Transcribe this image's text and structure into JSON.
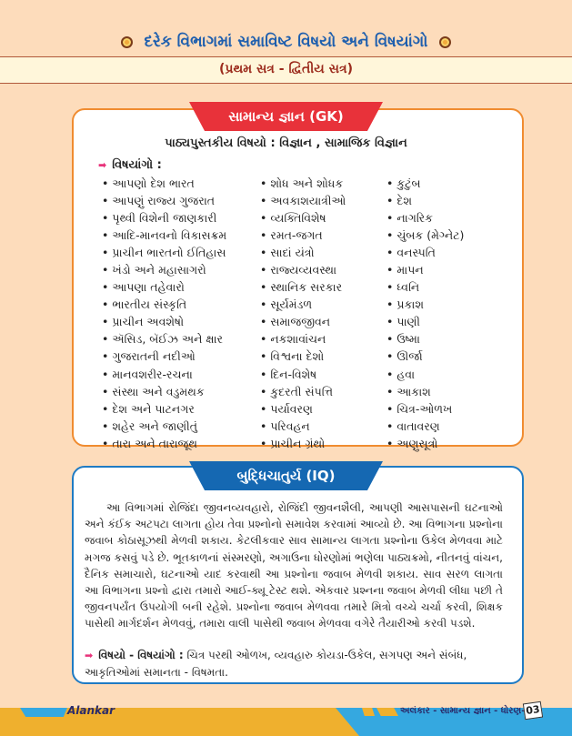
{
  "header": {
    "title": "દરેક વિભાગમાં સમાવિષ્ટ વિષયો અને વિષયાંગો",
    "subtitle": "(પ્રથમ સત્ર - દ્વિતીય સત્ર)"
  },
  "gk": {
    "tab": "સામાન્ય જ્ઞાન (GK)",
    "textbook": "પાઠ્યપુસ્તકીય વિષયો : વિજ્ઞાન , સામાજિક વિજ્ઞાન",
    "subhead": "વિષયાંગો :",
    "col1": [
      "આપણો દેશ ભારત",
      "આપણું રાજ્ય ગુજરાત",
      "પૃથ્વી વિશેની જાણકારી",
      "આદિ-માનવનો વિકાસક્રમ",
      "પ્રાચીન ભારતનો ઈતિહાસ",
      "ખંડો અને મહાસાગરો",
      "આપણા તહેવારો",
      "ભારતીય સંસ્કૃતિ",
      "પ્રાચીન અવશેષો",
      "ઍસિડ, બૅઈઝ અને ક્ષાર",
      "ગુજરાતની નદીઓ",
      "માનવશરીર-રચના",
      "સંસ્થા અને વડુમથક",
      "દેશ અને પાટનગર",
      "શહેર અને જાણીતું",
      "તારા અને તારાજૂથ"
    ],
    "col2": [
      "શોધ અને શોધક",
      "અવકાશયાત્રીઓ",
      "વ્યક્તિવિશેષ",
      "રમત-જગત",
      "સાદાં યંત્રો",
      "રાજ્યવ્યવસ્થા",
      "સ્થાનિક સરકાર",
      "સૂર્યમંડળ",
      "સમાજજીવન",
      "નકશાવાંચન",
      "વિશ્વના દેશો",
      "દિન-વિશેષ",
      "કુદરતી સંપત્તિ",
      "પર્યાવરણ",
      "પરિવહન",
      "પ્રાચીન ગ્રંથો"
    ],
    "col3": [
      "કુટુંબ",
      "દેશ",
      "નાગરિક",
      "ચુંબક (મેગ્નેટ)",
      "વનસ્પતિ",
      "માપન",
      "ધ્વનિ",
      "પ્રકાશ",
      "પાણી",
      "ઉષ્મા",
      "ઊર્જા",
      "હવા",
      "આકાશ",
      "ચિત્ર-ઓળખ",
      "વાતાવરણ",
      "અણુસૂત્રો"
    ]
  },
  "iq": {
    "tab": "બુદ્ધિચાતુર્ય (IQ)",
    "paragraph": "આ વિભાગમાં રોજિંદા જીવનવ્યવહારો, રોજિંદી જીવનશૈલી, આપણી આસપાસની ઘટનાઓ અને કંઈક અટપટા લાગતા હોય તેવા પ્રશ્નોનો સમાવેશ કરવામાં આવ્યો છે. આ વિભાગના પ્રશ્નોના જવાબ કોઠાસૂઝથી મેળવી શકાય. કેટલીકવાર સાવ સામાન્ય લાગતા પ્રશ્નોના ઉકેલ મેળવવા માટે મગજ કસવું પડે છે. ભૂતકાળનાં સંસ્મરણો, અગાઉના ધોરણોમાં ભણેલા પાઠ્યક્રમો, નીતનવું વાંચન, દૈનિક સમાચારો, ઘટનાઓ યાદ કરવાથી આ પ્રશ્નોના જવાબ મેળવી શકાય. સાવ સરળ લાગતા આ વિભાગના પ્રશ્નો દ્વારા તમારો આઈ-ક્યૂ ટેસ્ટ થશે. એકવાર પ્રશ્નના જવાબ મેળવી લીધા પછી તે જીવનપર્યંત ઉપયોગી બની રહેશે. પ્રશ્નોના જવાબ મેળવવા તમારે મિત્રો વચ્ચે ચર્ચા કરવી, શિક્ષક પાસેથી માર્ગદર્શન મેળવવું, તમારા વાલી પાસેથી જવાબ મેળવવા વગેરે તૈયારીઓ કરવી પડશે.",
    "topics_label": "વિષયો - વિષયાંગો :",
    "topics": " ચિત્ર પરથી ઓળખ, વ્યવહારુ કોયડા-ઉકેલ, સગપણ અને સંબંધ, આકૃતિઓમાં સમાનતા - વિષમતા."
  },
  "footer": {
    "logo": "Alankar",
    "text": "અલંકાર - સામાન્ય જ્ઞાન - ધોરણ-6",
    "page": "03"
  }
}
